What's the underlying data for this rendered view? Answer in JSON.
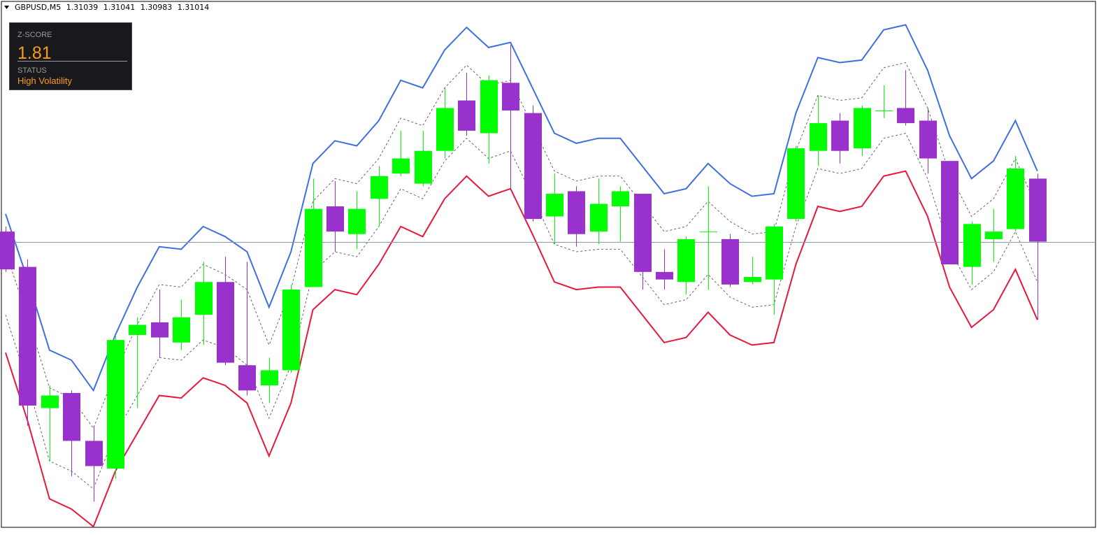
{
  "chart_data": {
    "type": "candlestick",
    "symbol": "GBPUSD,M5",
    "open": [
      1.31018,
      1.31004,
      1.30948,
      1.30954,
      1.30935,
      1.30924,
      1.30977,
      1.30982,
      1.30974,
      1.30985,
      1.30998,
      1.30965,
      1.30957,
      1.30963,
      1.30996,
      1.31028,
      1.31017,
      1.31031,
      1.31041,
      1.31037,
      1.3105,
      1.3107,
      1.31057,
      1.31077,
      1.31065,
      1.31024,
      1.31034,
      1.31018,
      1.31028,
      1.31033,
      1.31002,
      1.30998,
      1.31018,
      1.31015,
      1.30998,
      1.30999,
      1.31023,
      1.3105,
      1.31062,
      1.31051,
      1.31066,
      1.31067,
      1.31062,
      1.31046,
      1.31004,
      1.31015,
      1.31019,
      1.31039
    ],
    "high": [
      1.3102,
      1.31007,
      1.30957,
      1.30955,
      1.30941,
      1.30977,
      1.30984,
      1.30995,
      1.30991,
      1.31006,
      1.31008,
      1.31006,
      1.30968,
      1.30997,
      1.31039,
      1.31038,
      1.31034,
      1.31044,
      1.31058,
      1.31058,
      1.31075,
      1.31081,
      1.3108,
      1.31092,
      1.31068,
      1.31041,
      1.31036,
      1.31039,
      1.31036,
      1.31033,
      1.31011,
      1.31016,
      1.31036,
      1.31017,
      1.31008,
      1.31021,
      1.31052,
      1.31072,
      1.31065,
      1.31068,
      1.31076,
      1.31082,
      1.31067,
      1.31046,
      1.31022,
      1.31027,
      1.31048,
      1.31041
    ],
    "low": [
      1.31002,
      1.30941,
      1.30927,
      1.30921,
      1.30911,
      1.3092,
      1.30948,
      1.30968,
      1.30971,
      1.30973,
      1.30965,
      1.30953,
      1.3095,
      1.30962,
      1.30996,
      1.3101,
      1.31011,
      1.3102,
      1.3104,
      1.31036,
      1.31047,
      1.31056,
      1.31045,
      1.31035,
      1.31022,
      1.31013,
      1.31012,
      1.31013,
      1.31014,
      1.30995,
      1.30995,
      1.30993,
      1.30995,
      1.30996,
      1.30997,
      1.30985,
      1.31022,
      1.31044,
      1.31045,
      1.31048,
      1.31063,
      1.3106,
      1.31041,
      1.31005,
      1.30997,
      1.31006,
      1.31018,
      1.30983
    ],
    "close": [
      1.31003,
      1.30949,
      1.30953,
      1.30935,
      1.30925,
      1.30975,
      1.30981,
      1.30976,
      1.30984,
      1.30998,
      1.30966,
      1.30955,
      1.30963,
      1.30995,
      1.31027,
      1.31018,
      1.31027,
      1.3104,
      1.31047,
      1.3105,
      1.31067,
      1.31058,
      1.31078,
      1.31066,
      1.31023,
      1.31033,
      1.31017,
      1.31029,
      1.31034,
      1.31002,
      1.30999,
      1.31015,
      1.31018,
      1.30997,
      1.31,
      1.3102,
      1.31051,
      1.31061,
      1.3105,
      1.31067,
      1.31066,
      1.31061,
      1.31047,
      1.31005,
      1.31021,
      1.31018,
      1.31043,
      1.31014
    ],
    "up_color": "#00ff00",
    "down_color": "#9932cc",
    "ylim": [
      1.30901,
      1.31109
    ],
    "price_line_color": "#8a9aa8",
    "bands": [
      {
        "color": "#3f6fe0",
        "dashed": false,
        "values": [
          1.31025,
          1.30999,
          1.30971,
          1.30967,
          1.30955,
          1.30977,
          1.30996,
          1.31012,
          1.31011,
          1.3102,
          1.31016,
          1.3101,
          1.30988,
          1.3101,
          1.31045,
          1.31054,
          1.31052,
          1.31062,
          1.31078,
          1.31075,
          1.3109,
          1.31099,
          1.31091,
          1.31093,
          1.31075,
          1.31057,
          1.31053,
          1.31055,
          1.31055,
          1.31044,
          1.31033,
          1.31035,
          1.31045,
          1.31037,
          1.31032,
          1.31033,
          1.31065,
          1.31087,
          1.31085,
          1.31086,
          1.31098,
          1.311,
          1.31082,
          1.31056,
          1.31039,
          1.31046,
          1.31062,
          1.31042
        ]
      },
      {
        "color": "#666666",
        "dashed": true,
        "values": [
          1.3101,
          1.30984,
          1.30956,
          1.30952,
          1.3094,
          1.30962,
          1.30981,
          1.30997,
          1.30996,
          1.31005,
          1.31001,
          1.30995,
          1.30973,
          1.30995,
          1.3103,
          1.31039,
          1.31037,
          1.31047,
          1.31063,
          1.3106,
          1.31075,
          1.31084,
          1.31076,
          1.31078,
          1.3106,
          1.31042,
          1.31038,
          1.3104,
          1.3104,
          1.31029,
          1.31018,
          1.3102,
          1.3103,
          1.31022,
          1.31017,
          1.31018,
          1.3105,
          1.31072,
          1.3107,
          1.31071,
          1.31083,
          1.31085,
          1.31067,
          1.31041,
          1.31024,
          1.31031,
          1.31047,
          1.31027
        ]
      },
      {
        "color": "#666666",
        "dashed": true,
        "values": [
          1.30985,
          1.30958,
          1.30927,
          1.30923,
          1.30916,
          1.30938,
          1.30953,
          1.30968,
          1.30967,
          1.30975,
          1.30972,
          1.30965,
          1.30944,
          1.30965,
          1.31002,
          1.3101,
          1.31008,
          1.3102,
          1.31035,
          1.31031,
          1.31046,
          1.31055,
          1.31047,
          1.3105,
          1.31032,
          1.31013,
          1.3101,
          1.31011,
          1.31011,
          1.31,
          1.30989,
          1.30991,
          1.31001,
          1.30992,
          1.30988,
          1.30989,
          1.3102,
          1.31043,
          1.31041,
          1.31043,
          1.31055,
          1.31057,
          1.31039,
          1.31011,
          1.30995,
          1.31002,
          1.31018,
          1.30998
        ]
      },
      {
        "color": "#e8183c",
        "dashed": false,
        "values": [
          1.3097,
          1.30943,
          1.30912,
          1.30908,
          1.30901,
          1.30923,
          1.30938,
          1.30953,
          1.30952,
          1.3096,
          1.30957,
          1.3095,
          1.30929,
          1.3095,
          1.30987,
          1.30995,
          1.30993,
          1.31005,
          1.3102,
          1.31016,
          1.31031,
          1.3104,
          1.31032,
          1.31035,
          1.31017,
          1.30998,
          1.30995,
          1.30996,
          1.30996,
          1.30985,
          1.30974,
          1.30976,
          1.30986,
          1.30977,
          1.30973,
          1.30974,
          1.31005,
          1.31028,
          1.31026,
          1.31028,
          1.3104,
          1.31042,
          1.31024,
          1.30996,
          1.3098,
          1.30987,
          1.31003,
          1.30983
        ]
      }
    ]
  },
  "indicator_panel": {
    "label": "Z-SCORE",
    "value": 1.81,
    "status_label": "STATUS",
    "status": "High Volatility"
  }
}
